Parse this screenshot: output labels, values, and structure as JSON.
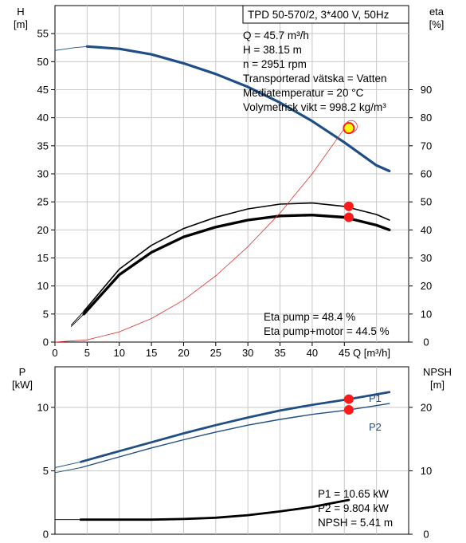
{
  "info_box": {
    "title": "TPD 50-570/2, 3*400 V, 50Hz",
    "lines": [
      "Q = 45.7 m³/h",
      "H = 38.15 m",
      "n = 2951 rpm",
      "Transporterad vätska = Vatten",
      "Mediatemperatur = 20 °C",
      "Volymetrisk vikt = 998.2 kg/m³"
    ]
  },
  "colors": {
    "head_curve": "#1f4e86",
    "eta_curve": "#000000",
    "npsh_ref_curve": "#e03030",
    "power_curve": "#1f4e86",
    "npsh_curve": "#000000",
    "marker": "#ff1a1a",
    "operating_point": "#ffff00",
    "grid": "#c8c8c8"
  },
  "chart_data": [
    {
      "type": "line",
      "xlabel": "Q [m³/h]",
      "xlim": [
        0,
        55
      ],
      "xticks": [
        0,
        5,
        10,
        15,
        20,
        25,
        30,
        35,
        40,
        45
      ],
      "ylabel_left_lines": [
        "H",
        "[m]"
      ],
      "ylim_left": [
        0,
        60
      ],
      "yticks_left": [
        0,
        5,
        10,
        15,
        20,
        25,
        30,
        35,
        40,
        45,
        50,
        55
      ],
      "ylabel_right_lines": [
        "eta",
        "[%]"
      ],
      "ylim_right": [
        0,
        120
      ],
      "yticks_right": [
        0,
        10,
        20,
        30,
        40,
        50,
        60,
        70,
        80,
        90
      ],
      "grid": true,
      "series": [
        {
          "key": "head",
          "axis": "left",
          "thin_x": [
            0,
            5
          ],
          "x": [
            0,
            3,
            5,
            10,
            15,
            20,
            25,
            30,
            35,
            40,
            45,
            50,
            52
          ],
          "y": [
            52.0,
            52.5,
            52.7,
            52.3,
            51.3,
            49.7,
            47.8,
            45.5,
            42.7,
            39.4,
            35.6,
            31.5,
            30.5
          ]
        },
        {
          "key": "eta_pump",
          "axis": "right",
          "thin_x": [
            2.5,
            4.5
          ],
          "x": [
            2.5,
            4.5,
            10,
            15,
            20,
            25,
            30,
            35,
            40,
            45,
            50,
            52
          ],
          "y": [
            6,
            11,
            26,
            34.5,
            40.5,
            44.5,
            47.5,
            49.2,
            49.6,
            48.4,
            45.5,
            43.5
          ]
        },
        {
          "key": "eta_total",
          "axis": "right",
          "thin_x": [
            2.5,
            4.5
          ],
          "x": [
            2.5,
            4.5,
            10,
            15,
            20,
            25,
            30,
            35,
            40,
            45,
            50,
            52
          ],
          "y": [
            5.5,
            10,
            24,
            32,
            37.5,
            41,
            43.5,
            45,
            45.3,
            44.5,
            41.7,
            40
          ]
        },
        {
          "key": "h_ref",
          "axis": "left",
          "x": [
            0,
            5,
            10,
            15,
            20,
            25,
            30,
            35,
            40,
            45.7
          ],
          "y": [
            0,
            0.4,
            1.8,
            4.2,
            7.5,
            11.8,
            17,
            23,
            30,
            39.2
          ]
        }
      ],
      "markers": [
        {
          "x": 45.7,
          "y": 38.15,
          "axis": "left",
          "style": "operating"
        },
        {
          "x": 45.7,
          "y": 48.4,
          "axis": "right",
          "style": "point"
        },
        {
          "x": 45.7,
          "y": 44.5,
          "axis": "right",
          "style": "point"
        }
      ],
      "annotations": [
        "Eta pump = 48.4 %",
        "Eta pump+motor = 44.5 %"
      ]
    },
    {
      "type": "line",
      "xlim": [
        0,
        55
      ],
      "ylabel_left_lines": [
        "P",
        "[kW]"
      ],
      "ylim_left": [
        0,
        13.2
      ],
      "yticks_left": [
        0,
        5,
        10
      ],
      "ylabel_right_lines": [
        "NPSH",
        "[m]"
      ],
      "ylim_right": [
        0,
        26.4
      ],
      "yticks_right": [
        0,
        10,
        20
      ],
      "grid": true,
      "series": [
        {
          "key": "p1",
          "name": "P1",
          "axis": "left",
          "thin_x": [
            0,
            4
          ],
          "x": [
            0,
            4,
            10,
            15,
            20,
            25,
            30,
            35,
            40,
            45.7,
            52
          ],
          "y": [
            5.25,
            5.7,
            6.55,
            7.25,
            7.95,
            8.6,
            9.2,
            9.75,
            10.2,
            10.65,
            11.2
          ]
        },
        {
          "key": "p2",
          "name": "P2",
          "axis": "left",
          "thin_x": [
            0,
            4
          ],
          "x": [
            0,
            4,
            10,
            15,
            20,
            25,
            30,
            35,
            40,
            45.7,
            52
          ],
          "y": [
            4.85,
            5.25,
            6.1,
            6.8,
            7.45,
            8.05,
            8.6,
            9.05,
            9.45,
            9.8,
            10.3
          ]
        },
        {
          "key": "npsh",
          "axis": "right",
          "thin_x": [
            0,
            4
          ],
          "x": [
            0,
            4,
            10,
            15,
            20,
            25,
            30,
            35,
            40,
            45.7
          ],
          "y": [
            2.3,
            2.3,
            2.3,
            2.3,
            2.4,
            2.6,
            3.0,
            3.6,
            4.3,
            5.41
          ]
        }
      ],
      "markers": [
        {
          "x": 45.7,
          "y": 10.65,
          "axis": "left",
          "style": "point"
        },
        {
          "x": 45.7,
          "y": 9.804,
          "axis": "left",
          "style": "point"
        }
      ],
      "annotations": [
        "P1 = 10.65 kW",
        "P2 = 9.804 kW",
        "NPSH = 5.41 m"
      ]
    }
  ]
}
